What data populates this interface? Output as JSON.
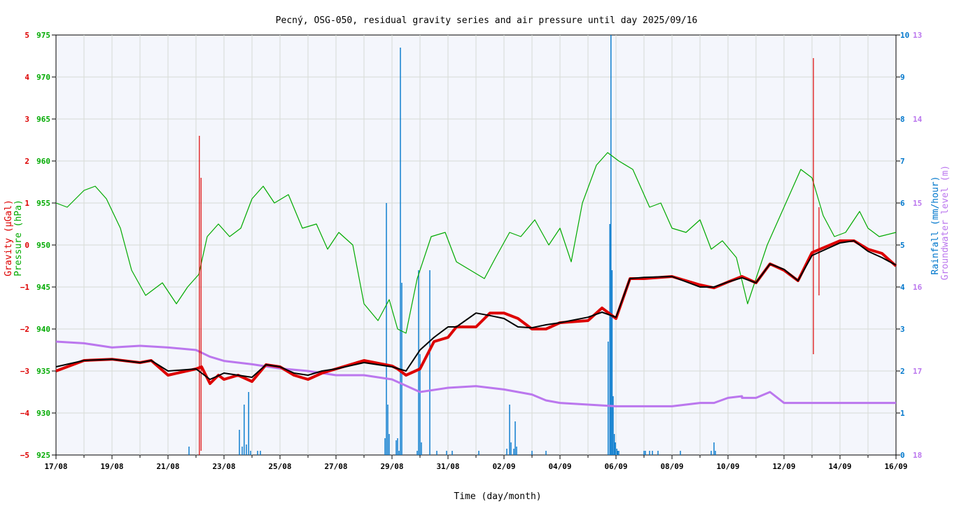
{
  "chart_data": {
    "type": "line",
    "title": "Pecný, OSG-050, residual gravity series and air pressure until day 2025/09/16",
    "xlabel": "Time (day/month)",
    "x_ticks": [
      "17/08",
      "19/08",
      "21/08",
      "23/08",
      "25/08",
      "27/08",
      "29/08",
      "31/08",
      "02/09",
      "04/09",
      "06/09",
      "08/09",
      "10/09",
      "12/09",
      "14/09",
      "16/09"
    ],
    "x_range_days": [
      0,
      30
    ],
    "grid": true,
    "axes": {
      "gravity": {
        "label": "Gravity (µGal)",
        "color": "#dd0000",
        "range": [
          -5,
          5
        ],
        "ticks": [
          "−5",
          "−4",
          "−3",
          "−2",
          "−1",
          "0",
          "1",
          "2",
          "3",
          "4",
          "5"
        ]
      },
      "pressure": {
        "label": "Pressure (hPa)",
        "color": "#00aa00",
        "range": [
          925,
          975
        ],
        "ticks": [
          "925",
          "930",
          "935",
          "940",
          "945",
          "950",
          "955",
          "960",
          "965",
          "970",
          "975"
        ]
      },
      "rainfall": {
        "label": "Rainfall (mm/hour)",
        "color": "#0077cc",
        "range": [
          0,
          10
        ],
        "ticks": [
          "0",
          "1",
          "2",
          "3",
          "4",
          "5",
          "6",
          "7",
          "8",
          "9",
          "10"
        ]
      },
      "groundwater": {
        "label": "Groundwater level (m)",
        "color": "#bb77ee",
        "range": [
          18,
          13
        ],
        "ticks": [
          "18",
          "17",
          "16",
          "15",
          "14",
          "13"
        ]
      }
    },
    "series": [
      {
        "name": "Pressure (hPa)",
        "axis": "pressure",
        "color": "#00aa00",
        "x": [
          0,
          0.4,
          1,
          1.4,
          1.8,
          2.3,
          2.7,
          3.2,
          3.8,
          4.3,
          4.7,
          5.1,
          5.4,
          5.8,
          6.2,
          6.6,
          7.0,
          7.4,
          7.8,
          8.3,
          8.8,
          9.3,
          9.7,
          10.1,
          10.6,
          11.0,
          11.5,
          11.9,
          12.2,
          12.5,
          12.9,
          13.4,
          13.9,
          14.3,
          14.8,
          15.3,
          15.7,
          16.2,
          16.6,
          17.1,
          17.6,
          18.0,
          18.4,
          18.8,
          19.3,
          19.7,
          20.1,
          20.6,
          21.2,
          21.6,
          22.0,
          22.5,
          23.0,
          23.4,
          23.8,
          24.3,
          24.7,
          25.0,
          25.4,
          25.8,
          26.2,
          26.6,
          27.0,
          27.4,
          27.8,
          28.2,
          28.7,
          29.0,
          29.4,
          30
        ],
        "values": [
          955,
          954.5,
          956.5,
          957,
          955.5,
          952,
          947,
          944,
          945.5,
          943,
          945,
          946.5,
          951,
          952.5,
          951,
          952,
          955.5,
          957,
          955,
          956,
          952,
          952.5,
          949.5,
          951.5,
          950,
          943,
          941,
          943.5,
          940,
          939.5,
          946,
          951,
          951.5,
          948,
          947,
          946,
          948.5,
          951.5,
          951,
          953,
          950,
          952,
          948,
          955,
          959.5,
          961,
          960,
          959,
          954.5,
          955,
          952,
          951.5,
          953,
          949.5,
          950.5,
          948.5,
          943,
          946,
          950,
          953,
          956,
          959,
          958,
          953.5,
          951,
          951.5,
          954,
          952,
          951,
          951.5
        ]
      },
      {
        "name": "Gravity (µGal)",
        "axis": "gravity",
        "color": "#dd0000",
        "x": [
          0,
          1,
          2,
          3,
          3.4,
          4,
          5,
          5.2,
          5.5,
          5.8,
          6,
          6.5,
          7,
          7.5,
          8,
          8.5,
          9,
          9.5,
          10,
          11,
          12,
          12.2,
          12.5,
          13,
          13.5,
          14,
          14.3,
          15,
          15.5,
          16,
          16.5,
          17,
          17.5,
          18,
          19,
          19.5,
          20,
          20.5,
          21,
          22,
          23,
          23.5,
          24,
          24.5,
          25,
          25.5,
          26,
          26.5,
          27,
          28,
          28.5,
          29,
          29.5,
          30
        ],
        "values": [
          -3,
          -2.75,
          -2.72,
          -2.8,
          -2.75,
          -3.1,
          -2.95,
          -2.9,
          -3.3,
          -3.1,
          -3.2,
          -3.1,
          -3.25,
          -2.85,
          -2.9,
          -3.1,
          -3.2,
          -3.05,
          -2.95,
          -2.75,
          -2.88,
          -2.95,
          -3.1,
          -2.95,
          -2.3,
          -2.2,
          -1.95,
          -1.95,
          -1.62,
          -1.62,
          -1.75,
          -2,
          -2,
          -1.85,
          -1.8,
          -1.5,
          -1.75,
          -0.8,
          -0.8,
          -0.75,
          -0.95,
          -1.02,
          -0.88,
          -0.75,
          -0.9,
          -0.45,
          -0.6,
          -0.85,
          -0.18,
          0.1,
          0.1,
          -0.1,
          -0.2,
          -0.5
        ]
      },
      {
        "name": "Gravity smoothed (µGal)",
        "axis": "gravity",
        "color": "#000000",
        "x": [
          0,
          1,
          2,
          3,
          3.4,
          4,
          5,
          5.5,
          6,
          6.5,
          7,
          7.5,
          8,
          8.5,
          9,
          9.5,
          10,
          11,
          12,
          12.5,
          13,
          13.5,
          14,
          14.3,
          15,
          15.5,
          16,
          16.5,
          17,
          17.5,
          18,
          19,
          19.5,
          20,
          20.5,
          21,
          22,
          23,
          23.5,
          24,
          24.5,
          25,
          25.5,
          26,
          26.5,
          27,
          28,
          28.5,
          29,
          29.5,
          30
        ],
        "values": [
          -2.9,
          -2.75,
          -2.72,
          -2.8,
          -2.75,
          -3,
          -2.95,
          -3.2,
          -3.05,
          -3.1,
          -3.15,
          -2.85,
          -2.9,
          -3.05,
          -3.1,
          -3.0,
          -2.95,
          -2.8,
          -2.9,
          -3,
          -2.5,
          -2.2,
          -1.95,
          -1.95,
          -1.62,
          -1.68,
          -1.75,
          -1.95,
          -1.97,
          -1.9,
          -1.85,
          -1.72,
          -1.6,
          -1.72,
          -0.8,
          -0.77,
          -0.75,
          -1.0,
          -1.0,
          -0.88,
          -0.78,
          -0.9,
          -0.45,
          -0.58,
          -0.85,
          -0.25,
          0.05,
          0.1,
          -0.15,
          -0.3,
          -0.48
        ]
      },
      {
        "name": "Groundwater level (m)",
        "axis": "groundwater",
        "color": "#bb77ee",
        "x": [
          0,
          1,
          2,
          3,
          4,
          5,
          5.5,
          6,
          7,
          8,
          9,
          10,
          11,
          12,
          13,
          14,
          15,
          16,
          17,
          17.5,
          18,
          19,
          20,
          21,
          22,
          23,
          23.5,
          24,
          24.5,
          24.5,
          25,
          25.5,
          26,
          27,
          28,
          29,
          30
        ],
        "values": [
          16.65,
          16.67,
          16.72,
          16.7,
          16.72,
          16.75,
          16.83,
          16.88,
          16.92,
          16.97,
          17.0,
          17.05,
          17.05,
          17.1,
          17.25,
          17.2,
          17.18,
          17.22,
          17.28,
          17.35,
          17.38,
          17.4,
          17.42,
          17.42,
          17.42,
          17.38,
          17.38,
          17.32,
          17.3,
          17.32,
          17.32,
          17.25,
          17.38,
          17.38,
          17.38,
          17.38,
          17.38
        ]
      }
    ],
    "rainfall_bars": {
      "name": "Rainfall (mm/hour)",
      "axis": "rainfall",
      "color": "#0077cc",
      "x": [
        4.75,
        6.55,
        6.65,
        6.72,
        6.8,
        6.88,
        6.95,
        7.2,
        7.3,
        11.75,
        11.8,
        11.85,
        11.9,
        12.15,
        12.2,
        12.25,
        12.3,
        12.35,
        12.9,
        12.95,
        13.0,
        13.05,
        13.35,
        13.6,
        13.95,
        14.15,
        15.1,
        16.1,
        16.2,
        16.25,
        16.35,
        16.4,
        16.45,
        17.0,
        17.5,
        19.72,
        19.78,
        19.82,
        19.86,
        19.9,
        19.94,
        19.98,
        20.03,
        20.06,
        20.1,
        21.0,
        21.05,
        21.2,
        21.3,
        21.5,
        22.3,
        23.4,
        23.5,
        23.55
      ],
      "values": [
        0.2,
        0.6,
        0.2,
        1.2,
        0.25,
        1.5,
        0.1,
        0.1,
        0.1,
        0.4,
        6.0,
        1.2,
        0.5,
        0.35,
        0.4,
        0.1,
        9.7,
        4.1,
        0.1,
        4.4,
        2.4,
        0.3,
        4.4,
        0.1,
        0.1,
        0.1,
        0.1,
        0.15,
        1.2,
        0.3,
        0.15,
        0.8,
        0.2,
        0.1,
        0.1,
        2.7,
        5.5,
        10.0,
        4.4,
        1.4,
        0.5,
        0.3,
        0.15,
        0.1,
        0.1,
        0.1,
        0.1,
        0.1,
        0.1,
        0.1,
        0.1,
        0.1,
        0.3,
        0.1
      ]
    },
    "spikes": [
      {
        "axis": "gravity",
        "x": 5.12,
        "low": -5.0,
        "high": 2.6
      },
      {
        "axis": "gravity",
        "x": 5.18,
        "low": -4.9,
        "high": 1.6
      },
      {
        "axis": "gravity",
        "x": 27.05,
        "low": -2.6,
        "high": 4.45
      },
      {
        "axis": "gravity",
        "x": 27.25,
        "low": -1.2,
        "high": 0.9
      }
    ]
  }
}
